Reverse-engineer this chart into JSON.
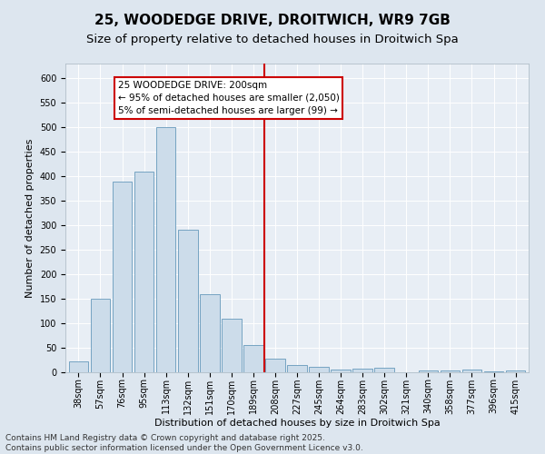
{
  "title1": "25, WOODEDGE DRIVE, DROITWICH, WR9 7GB",
  "title2": "Size of property relative to detached houses in Droitwich Spa",
  "xlabel": "Distribution of detached houses by size in Droitwich Spa",
  "ylabel": "Number of detached properties",
  "categories": [
    "38sqm",
    "57sqm",
    "76sqm",
    "95sqm",
    "113sqm",
    "132sqm",
    "151sqm",
    "170sqm",
    "189sqm",
    "208sqm",
    "227sqm",
    "245sqm",
    "264sqm",
    "283sqm",
    "302sqm",
    "321sqm",
    "340sqm",
    "358sqm",
    "377sqm",
    "396sqm",
    "415sqm"
  ],
  "values": [
    22,
    150,
    390,
    410,
    500,
    290,
    160,
    110,
    55,
    28,
    15,
    12,
    5,
    8,
    10,
    0,
    4,
    3,
    5,
    2,
    3
  ],
  "bar_color": "#ccdcea",
  "bar_edge_color": "#6699bb",
  "vline_color": "#cc0000",
  "annotation_text": "25 WOODEDGE DRIVE: 200sqm\n← 95% of detached houses are smaller (2,050)\n5% of semi-detached houses are larger (99) →",
  "annotation_box_color": "#cc0000",
  "ylim": [
    0,
    630
  ],
  "yticks": [
    0,
    50,
    100,
    150,
    200,
    250,
    300,
    350,
    400,
    450,
    500,
    550,
    600
  ],
  "bg_color": "#dde6ef",
  "plot_bg_color": "#e8eef5",
  "grid_color": "#ffffff",
  "footer_text": "Contains HM Land Registry data © Crown copyright and database right 2025.\nContains public sector information licensed under the Open Government Licence v3.0.",
  "title1_fontsize": 11,
  "title2_fontsize": 9.5,
  "label_fontsize": 8,
  "tick_fontsize": 7,
  "footer_fontsize": 6.5,
  "ann_fontsize": 7.5
}
